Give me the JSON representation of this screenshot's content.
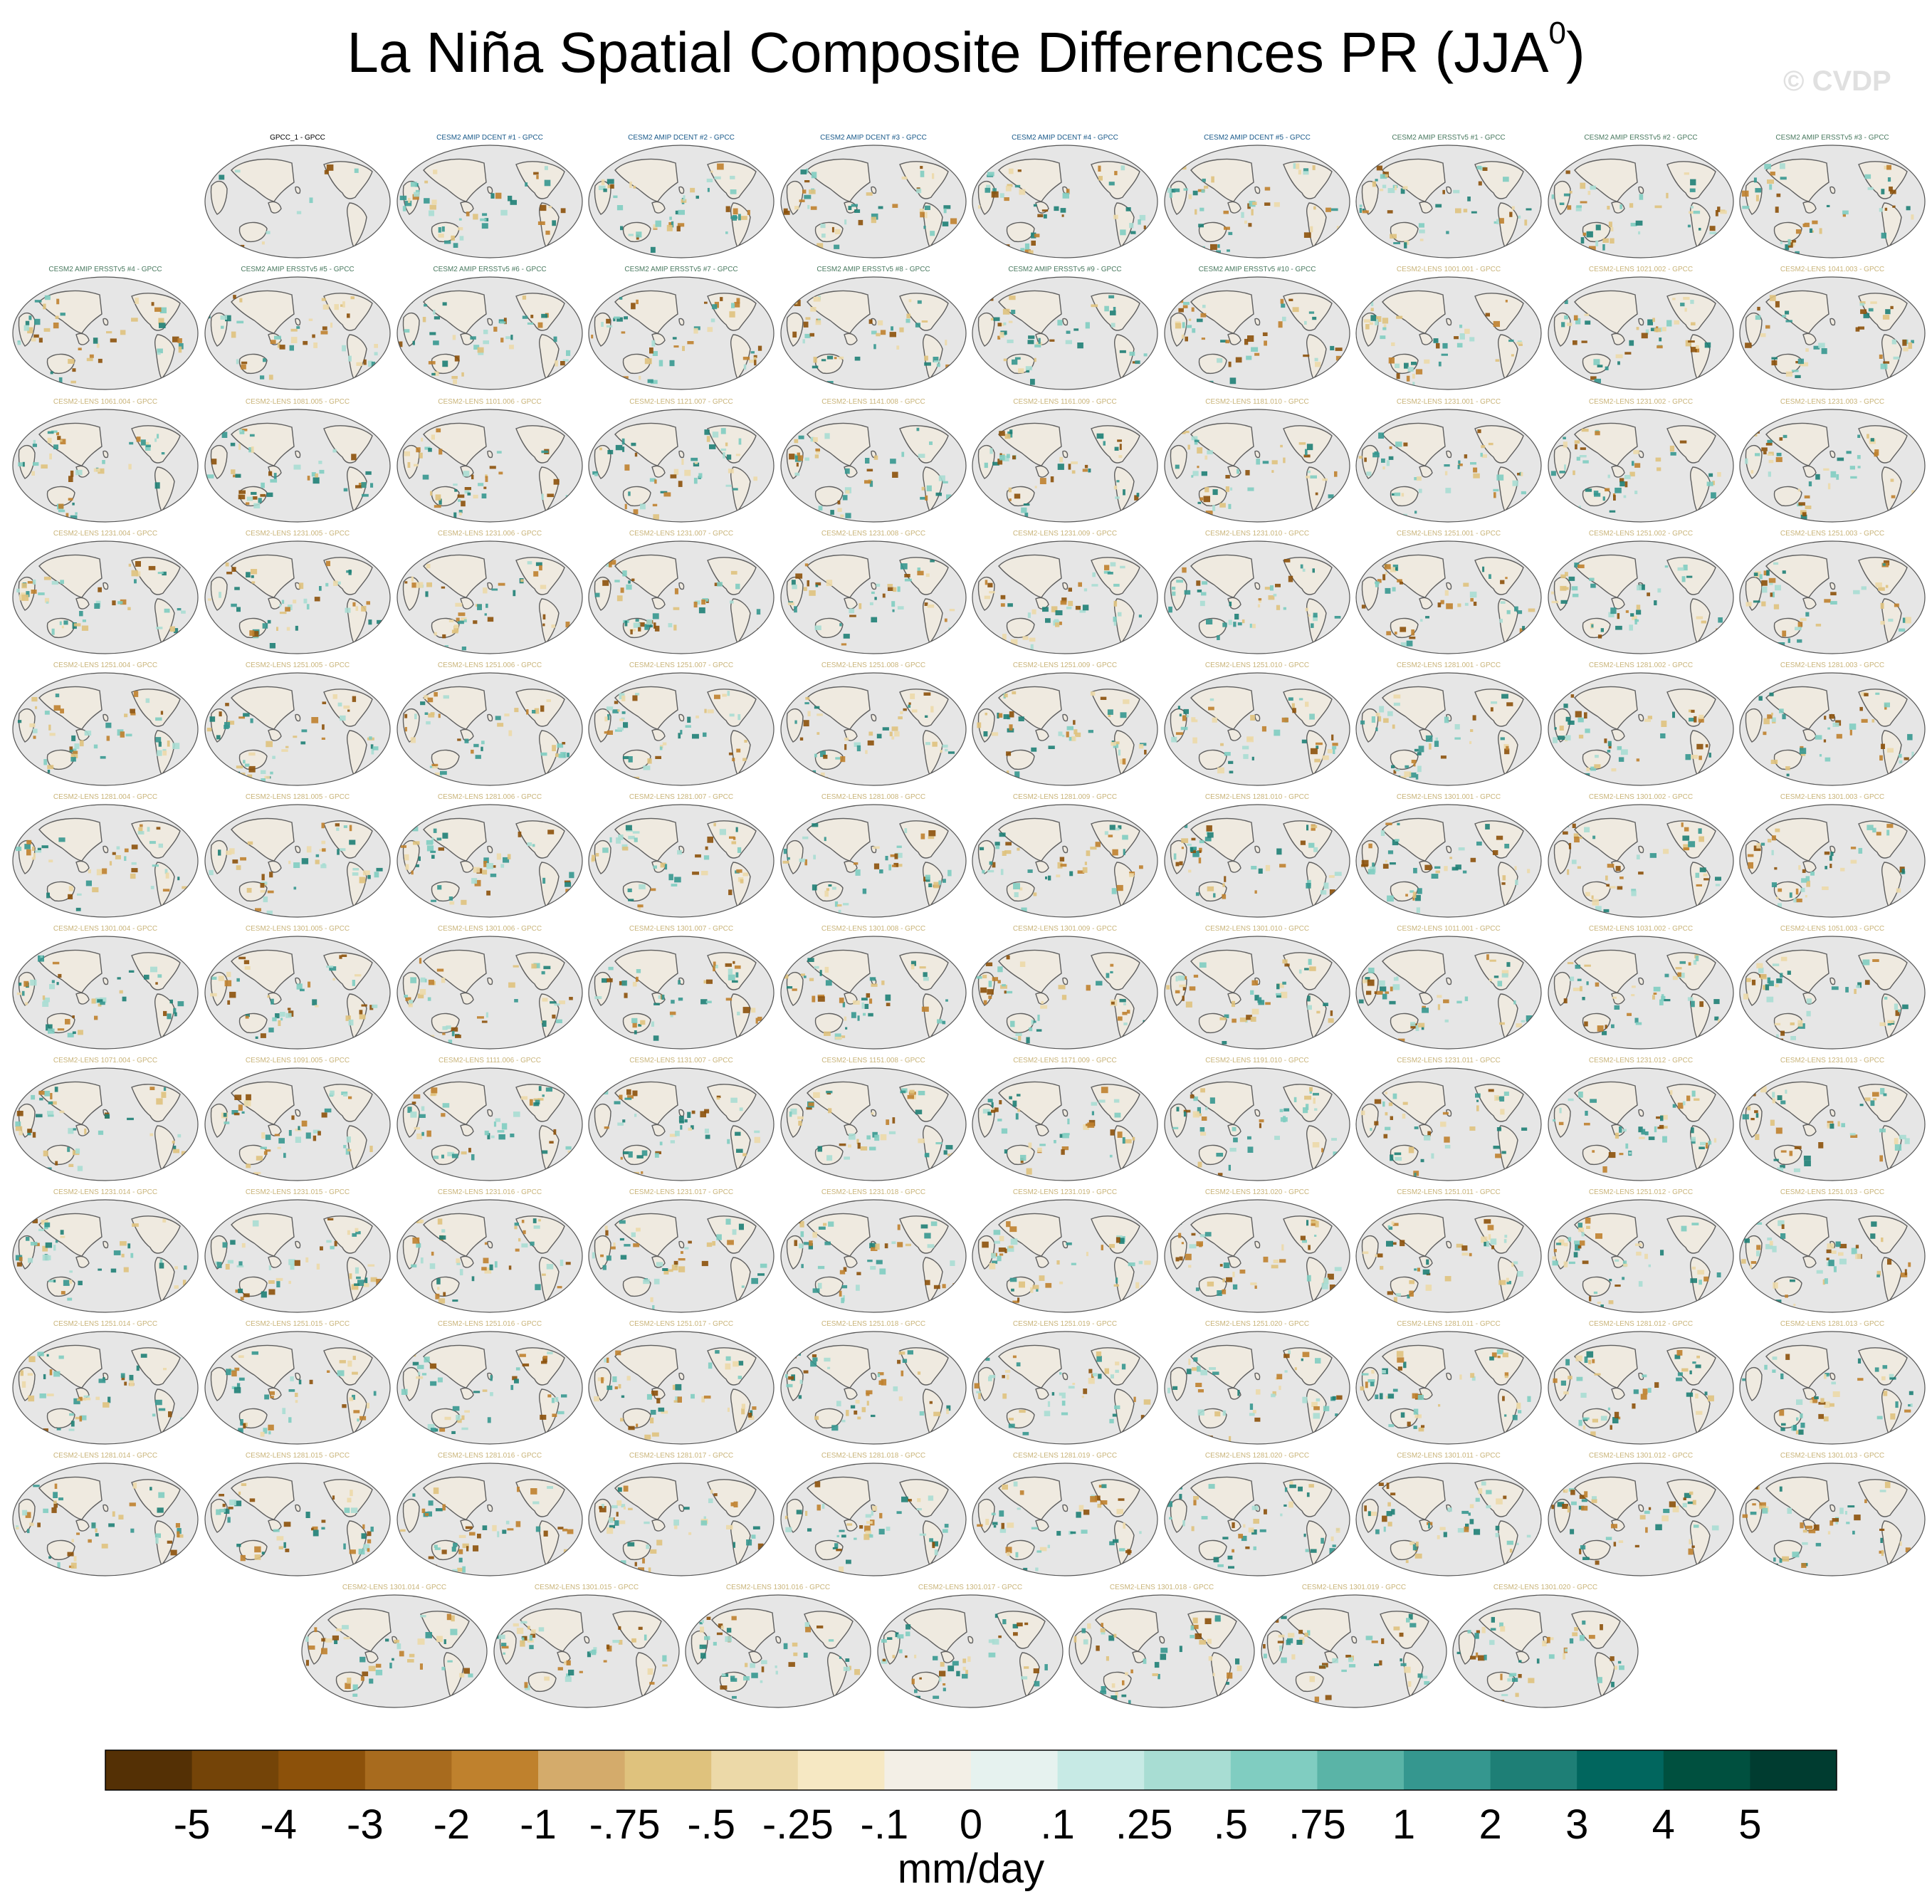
{
  "title": "La Niña Spatial Composite Differences PR (JJA",
  "title_sup": "0",
  "title_end": ")",
  "watermark": "© CVDP",
  "colors": {
    "title_obs": "#000000",
    "title_amip_dcent": "#1a5a8a",
    "title_amip_ersst": "#4a7a60",
    "title_lens": "#c9b47a",
    "land_gray": "#5f5f5f",
    "ocean_gray": "#e6e6e6"
  },
  "chart_data": {
    "type": "heatmap",
    "title": "La Niña Spatial Composite Differences PR (JJA0)",
    "panel_rows": [
      [
        "GPCC_1 - GPCC",
        "CESM2 AMIP DCENT #1 - GPCC",
        "CESM2 AMIP DCENT #2 - GPCC",
        "CESM2 AMIP DCENT #3 - GPCC",
        "CESM2 AMIP DCENT #4 - GPCC",
        "CESM2 AMIP DCENT #5 - GPCC",
        "CESM2 AMIP ERSSTv5 #1 - GPCC",
        "CESM2 AMIP ERSSTv5 #2 - GPCC",
        "CESM2 AMIP ERSSTv5 #3 - GPCC"
      ],
      [
        "CESM2 AMIP ERSSTv5 #4 - GPCC",
        "CESM2 AMIP ERSSTv5 #5 - GPCC",
        "CESM2 AMIP ERSSTv5 #6 - GPCC",
        "CESM2 AMIP ERSSTv5 #7 - GPCC",
        "CESM2 AMIP ERSSTv5 #8 - GPCC",
        "CESM2 AMIP ERSSTv5 #9 - GPCC",
        "CESM2 AMIP ERSSTv5 #10 - GPCC",
        "CESM2-LENS 1001.001 - GPCC",
        "CESM2-LENS 1021.002 - GPCC",
        "CESM2-LENS 1041.003 - GPCC"
      ],
      [
        "CESM2-LENS 1061.004 - GPCC",
        "CESM2-LENS 1081.005 - GPCC",
        "CESM2-LENS 1101.006 - GPCC",
        "CESM2-LENS 1121.007 - GPCC",
        "CESM2-LENS 1141.008 - GPCC",
        "CESM2-LENS 1161.009 - GPCC",
        "CESM2-LENS 1181.010 - GPCC",
        "CESM2-LENS 1231.001 - GPCC",
        "CESM2-LENS 1231.002 - GPCC",
        "CESM2-LENS 1231.003 - GPCC"
      ],
      [
        "CESM2-LENS 1231.004 - GPCC",
        "CESM2-LENS 1231.005 - GPCC",
        "CESM2-LENS 1231.006 - GPCC",
        "CESM2-LENS 1231.007 - GPCC",
        "CESM2-LENS 1231.008 - GPCC",
        "CESM2-LENS 1231.009 - GPCC",
        "CESM2-LENS 1231.010 - GPCC",
        "CESM2-LENS 1251.001 - GPCC",
        "CESM2-LENS 1251.002 - GPCC",
        "CESM2-LENS 1251.003 - GPCC"
      ],
      [
        "CESM2-LENS 1251.004 - GPCC",
        "CESM2-LENS 1251.005 - GPCC",
        "CESM2-LENS 1251.006 - GPCC",
        "CESM2-LENS 1251.007 - GPCC",
        "CESM2-LENS 1251.008 - GPCC",
        "CESM2-LENS 1251.009 - GPCC",
        "CESM2-LENS 1251.010 - GPCC",
        "CESM2-LENS 1281.001 - GPCC",
        "CESM2-LENS 1281.002 - GPCC",
        "CESM2-LENS 1281.003 - GPCC"
      ],
      [
        "CESM2-LENS 1281.004 - GPCC",
        "CESM2-LENS 1281.005 - GPCC",
        "CESM2-LENS 1281.006 - GPCC",
        "CESM2-LENS 1281.007 - GPCC",
        "CESM2-LENS 1281.008 - GPCC",
        "CESM2-LENS 1281.009 - GPCC",
        "CESM2-LENS 1281.010 - GPCC",
        "CESM2-LENS 1301.001 - GPCC",
        "CESM2-LENS 1301.002 - GPCC",
        "CESM2-LENS 1301.003 - GPCC"
      ],
      [
        "CESM2-LENS 1301.004 - GPCC",
        "CESM2-LENS 1301.005 - GPCC",
        "CESM2-LENS 1301.006 - GPCC",
        "CESM2-LENS 1301.007 - GPCC",
        "CESM2-LENS 1301.008 - GPCC",
        "CESM2-LENS 1301.009 - GPCC",
        "CESM2-LENS 1301.010 - GPCC",
        "CESM2-LENS 1011.001 - GPCC",
        "CESM2-LENS 1031.002 - GPCC",
        "CESM2-LENS 1051.003 - GPCC"
      ],
      [
        "CESM2-LENS 1071.004 - GPCC",
        "CESM2-LENS 1091.005 - GPCC",
        "CESM2-LENS 1111.006 - GPCC",
        "CESM2-LENS 1131.007 - GPCC",
        "CESM2-LENS 1151.008 - GPCC",
        "CESM2-LENS 1171.009 - GPCC",
        "CESM2-LENS 1191.010 - GPCC",
        "CESM2-LENS 1231.011 - GPCC",
        "CESM2-LENS 1231.012 - GPCC",
        "CESM2-LENS 1231.013 - GPCC"
      ],
      [
        "CESM2-LENS 1231.014 - GPCC",
        "CESM2-LENS 1231.015 - GPCC",
        "CESM2-LENS 1231.016 - GPCC",
        "CESM2-LENS 1231.017 - GPCC",
        "CESM2-LENS 1231.018 - GPCC",
        "CESM2-LENS 1231.019 - GPCC",
        "CESM2-LENS 1231.020 - GPCC",
        "CESM2-LENS 1251.011 - GPCC",
        "CESM2-LENS 1251.012 - GPCC",
        "CESM2-LENS 1251.013 - GPCC"
      ],
      [
        "CESM2-LENS 1251.014 - GPCC",
        "CESM2-LENS 1251.015 - GPCC",
        "CESM2-LENS 1251.016 - GPCC",
        "CESM2-LENS 1251.017 - GPCC",
        "CESM2-LENS 1251.018 - GPCC",
        "CESM2-LENS 1251.019 - GPCC",
        "CESM2-LENS 1251.020 - GPCC",
        "CESM2-LENS 1281.011 - GPCC",
        "CESM2-LENS 1281.012 - GPCC",
        "CESM2-LENS 1281.013 - GPCC"
      ],
      [
        "CESM2-LENS 1281.014 - GPCC",
        "CESM2-LENS 1281.015 - GPCC",
        "CESM2-LENS 1281.016 - GPCC",
        "CESM2-LENS 1281.017 - GPCC",
        "CESM2-LENS 1281.018 - GPCC",
        "CESM2-LENS 1281.019 - GPCC",
        "CESM2-LENS 1281.020 - GPCC",
        "CESM2-LENS 1301.011 - GPCC",
        "CESM2-LENS 1301.012 - GPCC",
        "CESM2-LENS 1301.013 - GPCC"
      ],
      [
        "CESM2-LENS 1301.014 - GPCC",
        "CESM2-LENS 1301.015 - GPCC",
        "CESM2-LENS 1301.016 - GPCC",
        "CESM2-LENS 1301.017 - GPCC",
        "CESM2-LENS 1301.018 - GPCC",
        "CESM2-LENS 1301.019 - GPCC",
        "CESM2-LENS 1301.020 - GPCC"
      ]
    ],
    "colorbar": {
      "units": "mm/day",
      "levels": [
        "-5",
        "-4",
        "-3",
        "-2",
        "-1",
        "-.75",
        "-.5",
        "-.25",
        "-.1",
        "0",
        ".1",
        ".25",
        ".5",
        ".75",
        "1",
        "2",
        "3",
        "4",
        "5"
      ],
      "colors": [
        "#543005",
        "#744408",
        "#8c510a",
        "#a86b1e",
        "#bf812d",
        "#d4ab6b",
        "#dfc27d",
        "#ecd9a8",
        "#f6e8c3",
        "#f3efe6",
        "#e6f2ef",
        "#c7eae5",
        "#a8ddd3",
        "#80cdc1",
        "#5ab4a7",
        "#35978f",
        "#1e7f76",
        "#01665e",
        "#00503f",
        "#003c30"
      ]
    }
  }
}
